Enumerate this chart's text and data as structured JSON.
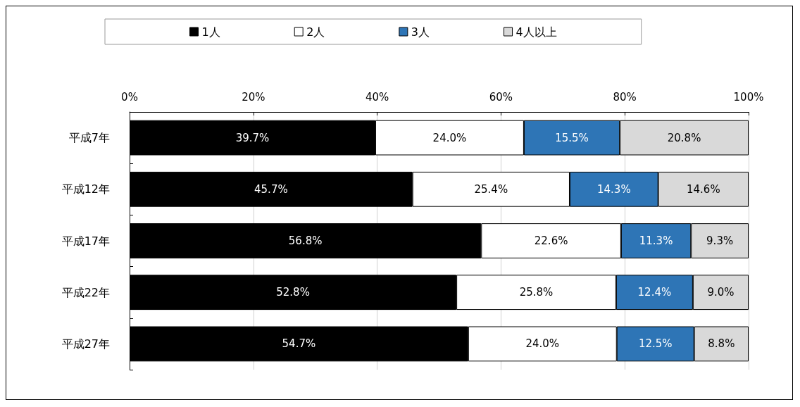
{
  "chart_data": {
    "type": "bar",
    "orientation": "horizontal",
    "stacked": true,
    "categories": [
      "平成7年",
      "平成12年",
      "平成17年",
      "平成22年",
      "平成27年"
    ],
    "series": [
      {
        "name": "1人",
        "color": "#000000",
        "values": [
          39.7,
          45.7,
          56.8,
          52.8,
          54.7
        ],
        "value_labels": [
          "39.7%",
          "45.7%",
          "56.8%",
          "52.8%",
          "54.7%"
        ]
      },
      {
        "name": "2人",
        "color": "#ffffff",
        "values": [
          24.0,
          25.4,
          22.6,
          25.8,
          24.0
        ],
        "value_labels": [
          "24.0%",
          "25.4%",
          "22.6%",
          "25.8%",
          "24.0%"
        ]
      },
      {
        "name": "3人",
        "color": "#2e75b6",
        "values": [
          15.5,
          14.3,
          11.3,
          12.4,
          12.5
        ],
        "value_labels": [
          "15.5%",
          "14.3%",
          "11.3%",
          "12.4%",
          "12.5%"
        ]
      },
      {
        "name": "4人以上",
        "color": "#d9d9d9",
        "values": [
          20.8,
          14.6,
          9.3,
          9.0,
          8.8
        ],
        "value_labels": [
          "20.8%",
          "14.6%",
          "9.3%",
          "9.0%",
          "8.8%"
        ]
      }
    ],
    "xlim": [
      0,
      100
    ],
    "xticks": [
      {
        "value": 0,
        "label": "0%"
      },
      {
        "value": 20,
        "label": "20%"
      },
      {
        "value": 40,
        "label": "40%"
      },
      {
        "value": 60,
        "label": "60%"
      },
      {
        "value": 80,
        "label": "80%"
      },
      {
        "value": 100,
        "label": "100%"
      }
    ],
    "grid": "x",
    "legend": "top"
  }
}
